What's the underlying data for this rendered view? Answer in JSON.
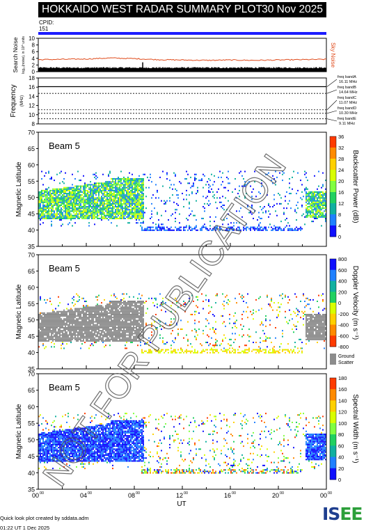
{
  "header": {
    "title": "HOKKAIDO WEST RADAR SUMMARY PLOT",
    "date": "30 Nov 2025",
    "cpid_label": "CPID:",
    "cpid_value": "151",
    "cpid_color": "#1c1cff"
  },
  "watermark": "NOT FOR PUBLICATION",
  "footer": {
    "line1": "Quick look plot created by sddata.adm",
    "line2": "01:22 UT  1 Dec 2025"
  },
  "logo": {
    "text_a": "IS",
    "text_b": "EE"
  },
  "chart_data": [
    {
      "type": "line",
      "name": "noise-panel",
      "ylabel": "Search Noise",
      "ylabel_sub": "log₁₀(noise), in 10^ units",
      "right_label": "Sky Noise",
      "ylim": [
        0,
        10
      ],
      "yticks": [
        0,
        2,
        4,
        6,
        8,
        10
      ],
      "xlim": [
        0,
        24
      ],
      "series": [
        {
          "name": "Sky Noise",
          "color": "#e04a1a",
          "x": [
            0,
            2,
            4,
            6,
            8,
            10,
            12,
            14,
            16,
            18,
            20,
            22,
            24
          ],
          "y": [
            3.6,
            3.7,
            3.8,
            4.1,
            3.9,
            3.6,
            3.5,
            3.4,
            3.5,
            3.4,
            3.5,
            3.6,
            3.7
          ]
        },
        {
          "name": "Search Noise",
          "color": "#000000",
          "x": [
            0,
            2,
            4,
            6,
            8,
            10,
            12,
            14,
            16,
            18,
            20,
            22,
            24
          ],
          "y": [
            1.2,
            1.2,
            1.3,
            1.3,
            1.2,
            1.2,
            1.1,
            1.1,
            1.2,
            1.2,
            1.1,
            1.2,
            1.2
          ]
        }
      ]
    },
    {
      "type": "line",
      "name": "frequency-panel",
      "ylabel": "Frequency",
      "ylabel_unit": "(MHz)",
      "ylim": [
        8,
        18
      ],
      "yticks": [
        8,
        10,
        12,
        14,
        16,
        18
      ],
      "xlim": [
        0,
        24
      ],
      "series": [
        {
          "name": "Operating frequency",
          "color": "#000000",
          "x": [
            0,
            24
          ],
          "y": [
            16.11,
            16.11
          ]
        }
      ],
      "bands": [
        {
          "label": "freq bandA",
          "value": "16.11 MHz",
          "freq": 16.11
        },
        {
          "label": "freq bandB",
          "value": "14.64 MHz",
          "freq": 14.64
        },
        {
          "label": "freq bandC",
          "value": "11.07 MHz",
          "freq": 11.07
        },
        {
          "label": "freq bandD",
          "value": "10.30 MHz",
          "freq": 10.3
        },
        {
          "label": "freq bandE",
          "value": "9.11 MHz",
          "freq": 9.11
        }
      ]
    },
    {
      "type": "heatmap",
      "name": "backscatter-power",
      "beam_label": "Beam  5",
      "ylabel": "Magnetic Latitude",
      "ylim": [
        35,
        70
      ],
      "yticks": [
        35,
        40,
        45,
        50,
        55,
        60,
        65,
        70
      ],
      "xlim": [
        0,
        24
      ],
      "colorbar_label": "Backscatter Power (dB)",
      "colorbar_ticks": [
        "36",
        "32",
        "28",
        "24",
        "20",
        "16",
        "12",
        "8",
        "4",
        "0"
      ],
      "colormap": [
        "#ff3a00",
        "#ff8a00",
        "#ffd000",
        "#d8ff00",
        "#80ff40",
        "#20d060",
        "#10b0a0",
        "#2080ff",
        "#1010ff"
      ]
    },
    {
      "type": "heatmap",
      "name": "doppler-velocity",
      "beam_label": "Beam  5",
      "ylabel": "Magnetic Latitude",
      "ylim": [
        35,
        70
      ],
      "yticks": [
        35,
        40,
        45,
        50,
        55,
        60,
        65,
        70
      ],
      "xlim": [
        0,
        24
      ],
      "colorbar_label": "Doppler Velocity (m s⁻¹)",
      "colorbar_ticks": [
        "800",
        "600",
        "400",
        "200",
        "0",
        "-200",
        "-400",
        "-600",
        "-800"
      ],
      "ground_scatter_label": [
        "Ground",
        "Scatter"
      ],
      "ground_scatter_color": "#8c8c8c",
      "colormap": [
        "#1010ff",
        "#2080ff",
        "#10b0a0",
        "#20d060",
        "#d8ff00",
        "#ffd000",
        "#ff8a00",
        "#ff3a00"
      ]
    },
    {
      "type": "heatmap",
      "name": "spectral-width",
      "beam_label": "Beam  5",
      "ylabel": "Magnetic Latitude",
      "ylim": [
        35,
        70
      ],
      "yticks": [
        35,
        40,
        45,
        50,
        55,
        60,
        65,
        70
      ],
      "xlim": [
        0,
        24
      ],
      "xticks": [
        "00",
        "04",
        "08",
        "12",
        "16",
        "20",
        "00"
      ],
      "xtick_sup": "00",
      "xlabel": "UT",
      "colorbar_label": "Spectral Width (m s⁻¹)",
      "colorbar_ticks": [
        "180",
        "160",
        "140",
        "120",
        "100",
        "80",
        "60",
        "40",
        "20",
        "0"
      ],
      "colormap": [
        "#ff3a00",
        "#ff8a00",
        "#ffd000",
        "#d8ff00",
        "#80ff40",
        "#20d060",
        "#10b0a0",
        "#2080ff",
        "#1010ff"
      ]
    }
  ]
}
